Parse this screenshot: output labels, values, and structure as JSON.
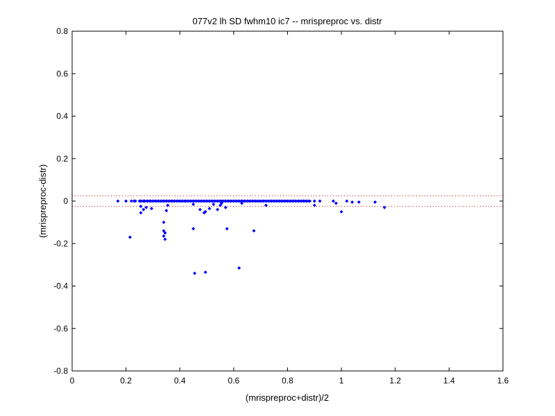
{
  "chart_data": {
    "type": "scatter",
    "title": "077v2 lh SD fwhm10 ic7 -- mrispreproc vs. distr",
    "xlabel": "(mrispreproc+distr)/2",
    "ylabel": "(mrispreproc-distr)",
    "xlim": [
      0,
      1.6
    ],
    "ylim": [
      -0.8,
      0.8
    ],
    "xticks": [
      "0",
      "0.2",
      "0.4",
      "0.6",
      "0.8",
      "1",
      "1.2",
      "1.4",
      "1.6"
    ],
    "yticks": [
      "0.8",
      "0.6",
      "0.4",
      "0.2",
      "0",
      "-0.2",
      "-0.4",
      "-0.6",
      "-0.8"
    ],
    "grid": false,
    "reference_lines": [
      0.025,
      -0.025
    ],
    "colors": {
      "points": "#0000ff",
      "reference_lines": "#cc0000",
      "axes": "#000000"
    },
    "series": [
      {
        "x": [
          0.17,
          0.2,
          0.22,
          0.23,
          0.235,
          0.25,
          0.255,
          0.265,
          0.27,
          0.28,
          0.29,
          0.3,
          0.31,
          0.32,
          0.33,
          0.34,
          0.35,
          0.36,
          0.37,
          0.38,
          0.39,
          0.4,
          0.41,
          0.42,
          0.43,
          0.44,
          0.45,
          0.46,
          0.47,
          0.48,
          0.49,
          0.5,
          0.51,
          0.52,
          0.53,
          0.54,
          0.55,
          0.56,
          0.57,
          0.58,
          0.59,
          0.6,
          0.61,
          0.62,
          0.63,
          0.64,
          0.65,
          0.66,
          0.67,
          0.68,
          0.69,
          0.7,
          0.71,
          0.72,
          0.73,
          0.74,
          0.75,
          0.76,
          0.77,
          0.78,
          0.79,
          0.8,
          0.81,
          0.82,
          0.83,
          0.84,
          0.85,
          0.86,
          0.87,
          0.88,
          0.9,
          0.92,
          0.97,
          1.02,
          1.04,
          1.065,
          1.125,
          0.255,
          0.255,
          0.265,
          0.275,
          0.295,
          0.35,
          0.355,
          0.45,
          0.475,
          0.49,
          0.495,
          0.51,
          0.525,
          0.54,
          0.55,
          0.555,
          0.57,
          0.63,
          0.72,
          0.9,
          0.98,
          1.0,
          1.16,
          0.215,
          0.34,
          0.34,
          0.34,
          0.345,
          0.345,
          0.45,
          0.575,
          0.675,
          0.455,
          0.495,
          0.62
        ],
        "y": [
          0.0,
          0.0,
          0.0,
          0.0,
          0.0,
          0.0,
          0.0,
          0.0,
          0.0,
          0.0,
          0.0,
          0.0,
          0.0,
          0.0,
          0.0,
          0.0,
          0.0,
          0.0,
          0.0,
          0.0,
          0.0,
          0.0,
          0.0,
          0.0,
          0.0,
          0.0,
          0.0,
          0.0,
          0.0,
          0.0,
          0.0,
          0.0,
          0.0,
          0.0,
          0.0,
          0.0,
          0.0,
          0.0,
          0.0,
          0.0,
          0.0,
          0.0,
          0.0,
          0.0,
          0.0,
          0.0,
          0.0,
          0.0,
          0.0,
          0.0,
          0.0,
          0.0,
          0.0,
          0.0,
          0.0,
          0.0,
          0.0,
          0.0,
          0.0,
          0.0,
          0.0,
          0.0,
          0.0,
          0.0,
          0.0,
          0.0,
          0.0,
          0.0,
          0.0,
          0.0,
          0.0,
          0.0,
          0.0,
          0.0,
          -0.005,
          -0.005,
          -0.005,
          -0.025,
          -0.055,
          -0.04,
          -0.03,
          -0.035,
          -0.045,
          -0.02,
          -0.015,
          -0.04,
          -0.055,
          -0.05,
          -0.035,
          -0.015,
          -0.04,
          -0.02,
          -0.01,
          -0.03,
          -0.01,
          -0.02,
          -0.02,
          -0.01,
          -0.05,
          -0.03,
          -0.17,
          -0.1,
          -0.14,
          -0.165,
          -0.18,
          -0.15,
          -0.13,
          -0.13,
          -0.14,
          -0.34,
          -0.335,
          -0.315
        ]
      }
    ]
  }
}
